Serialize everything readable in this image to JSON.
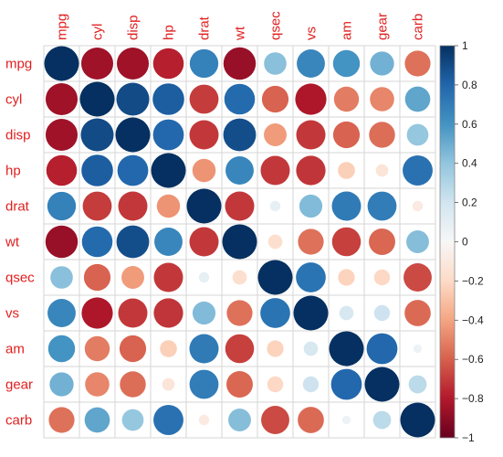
{
  "chart_data": {
    "type": "heatmap",
    "variables": [
      "mpg",
      "cyl",
      "disp",
      "hp",
      "drat",
      "wt",
      "qsec",
      "vs",
      "am",
      "gear",
      "carb"
    ],
    "matrix": [
      [
        1,
        -0.85,
        -0.85,
        -0.78,
        0.68,
        -0.87,
        0.42,
        0.66,
        0.6,
        0.48,
        -0.55
      ],
      [
        -0.85,
        1,
        0.9,
        0.83,
        -0.7,
        0.78,
        -0.59,
        -0.81,
        -0.52,
        -0.49,
        0.53
      ],
      [
        -0.85,
        0.9,
        1,
        0.79,
        -0.71,
        0.89,
        -0.43,
        -0.71,
        -0.59,
        -0.56,
        0.39
      ],
      [
        -0.78,
        0.83,
        0.79,
        1,
        -0.45,
        0.66,
        -0.71,
        -0.72,
        -0.24,
        -0.13,
        0.75
      ],
      [
        0.68,
        -0.7,
        -0.71,
        -0.45,
        1,
        -0.71,
        0.09,
        0.44,
        0.71,
        0.7,
        -0.09
      ],
      [
        -0.87,
        0.78,
        0.89,
        0.66,
        -0.71,
        1,
        -0.17,
        -0.55,
        -0.69,
        -0.58,
        0.43
      ],
      [
        0.42,
        -0.59,
        -0.43,
        -0.71,
        0.09,
        -0.17,
        1,
        0.74,
        -0.23,
        -0.21,
        -0.66
      ],
      [
        0.66,
        -0.81,
        -0.71,
        -0.72,
        0.44,
        -0.55,
        0.74,
        1,
        0.17,
        0.21,
        -0.57
      ],
      [
        0.6,
        -0.52,
        -0.59,
        -0.24,
        0.71,
        -0.69,
        -0.23,
        0.17,
        1,
        0.79,
        0.06
      ],
      [
        0.48,
        -0.49,
        -0.56,
        -0.13,
        0.7,
        -0.58,
        -0.21,
        0.21,
        0.79,
        1,
        0.27
      ],
      [
        -0.55,
        0.53,
        0.39,
        0.75,
        -0.09,
        0.43,
        -0.66,
        -0.57,
        0.06,
        0.27,
        1
      ]
    ],
    "method": "circle",
    "colorbar": {
      "ticks": [
        "1",
        "0.8",
        "0.6",
        "0.4",
        "0.2",
        "0",
        "−0.2",
        "−0.4",
        "−0.6",
        "−0.8",
        "−1"
      ],
      "range": [
        -1,
        1
      ]
    },
    "colors": {
      "strong_negative": "#67001f",
      "negative": "#d6604d",
      "neutral": "#f7f7f7",
      "positive": "#4393c3",
      "strong_positive": "#053061",
      "label": "#e02020"
    },
    "grid": true,
    "legend_position": "right"
  }
}
